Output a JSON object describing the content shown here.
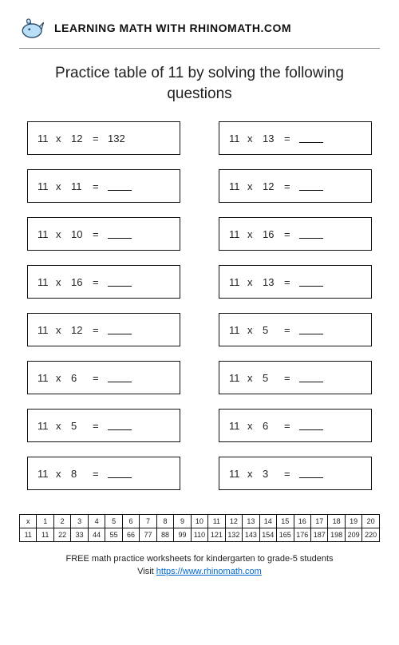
{
  "header": {
    "brand_text": "LEARNING MATH WITH RHINOMATH.COM"
  },
  "title": "Practice table of 11 by solving the following questions",
  "operator": "x",
  "equals": "=",
  "questions": [
    {
      "a": "11",
      "b": "12",
      "answer": "132"
    },
    {
      "a": "11",
      "b": "13",
      "answer": ""
    },
    {
      "a": "11",
      "b": "11",
      "answer": ""
    },
    {
      "a": "11",
      "b": "12",
      "answer": ""
    },
    {
      "a": "11",
      "b": "10",
      "answer": ""
    },
    {
      "a": "11",
      "b": "16",
      "answer": ""
    },
    {
      "a": "11",
      "b": "16",
      "answer": ""
    },
    {
      "a": "11",
      "b": "13",
      "answer": ""
    },
    {
      "a": "11",
      "b": "12",
      "answer": ""
    },
    {
      "a": "11",
      "b": "5",
      "answer": ""
    },
    {
      "a": "11",
      "b": "6",
      "answer": ""
    },
    {
      "a": "11",
      "b": "5",
      "answer": ""
    },
    {
      "a": "11",
      "b": "5",
      "answer": ""
    },
    {
      "a": "11",
      "b": "6",
      "answer": ""
    },
    {
      "a": "11",
      "b": "8",
      "answer": ""
    },
    {
      "a": "11",
      "b": "3",
      "answer": ""
    }
  ],
  "mult_table": {
    "row_label": "x",
    "base": "11",
    "headers": [
      "1",
      "2",
      "3",
      "4",
      "5",
      "6",
      "7",
      "8",
      "9",
      "10",
      "11",
      "12",
      "13",
      "14",
      "15",
      "16",
      "17",
      "18",
      "19",
      "20"
    ],
    "values": [
      "11",
      "22",
      "33",
      "44",
      "55",
      "66",
      "77",
      "88",
      "99",
      "110",
      "121",
      "132",
      "143",
      "154",
      "165",
      "176",
      "187",
      "198",
      "209",
      "220"
    ]
  },
  "footer": {
    "line1": "FREE math practice worksheets for kindergarten to grade-5 students",
    "line2_prefix": "Visit ",
    "link_text": "https://www.rhinomath.com"
  }
}
